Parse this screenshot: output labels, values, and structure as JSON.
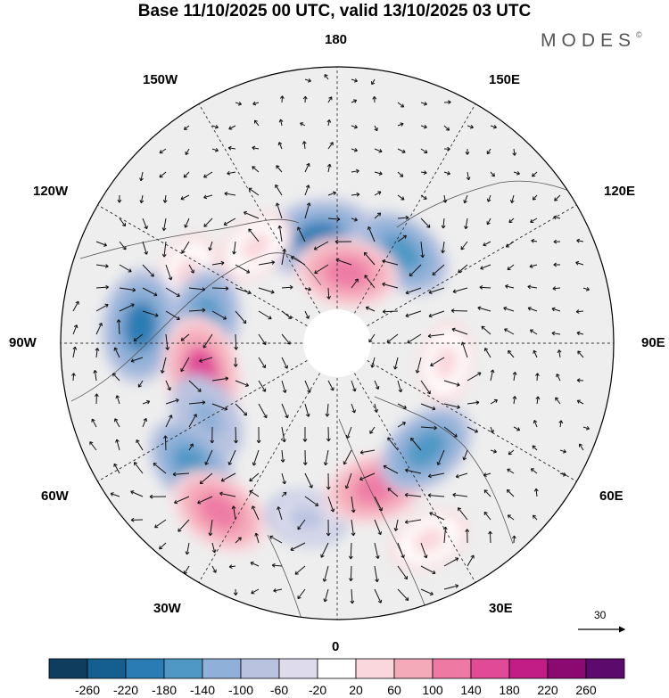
{
  "title": "Base 11/10/2025 00 UTC, valid 13/10/2025 03 UTC",
  "brand": "MODES",
  "brand_mark": "©",
  "longitudes": {
    "top": "180",
    "bottom": "0",
    "left": "90W",
    "right": "90E",
    "nw1": "150W",
    "nw2": "120W",
    "ne1": "150E",
    "ne2": "120E",
    "sw1": "60W",
    "sw2": "30W",
    "se1": "60E",
    "se2": "30E"
  },
  "vector_scale": {
    "value": "30"
  },
  "colorbar": {
    "ticks": [
      "-260",
      "-220",
      "-180",
      "-140",
      "-100",
      "-60",
      "-20",
      "20",
      "60",
      "100",
      "140",
      "180",
      "220",
      "260"
    ],
    "colors": [
      "#0f3d5e",
      "#145f8f",
      "#2a7db4",
      "#4f98c6",
      "#8fb0d8",
      "#b9c3e0",
      "#dedcec",
      "#ffffff",
      "#f9d7dc",
      "#f4aab9",
      "#ee7aa4",
      "#e04a97",
      "#c21d86",
      "#8a0a72",
      "#5c0a6b"
    ]
  },
  "anomalies": [
    {
      "lon": -170,
      "lat": 63,
      "value": -180
    },
    {
      "lon": -140,
      "lat": 58,
      "value": 60
    },
    {
      "lon": -115,
      "lat": 48,
      "value": 60
    },
    {
      "lon": -95,
      "lat": 40,
      "value": -180
    },
    {
      "lon": -100,
      "lat": 56,
      "value": -140
    },
    {
      "lon": -78,
      "lat": 55,
      "value": 180
    },
    {
      "lon": -60,
      "lat": 52,
      "value": -100
    },
    {
      "lon": -50,
      "lat": 42,
      "value": -140
    },
    {
      "lon": -35,
      "lat": 38,
      "value": 140
    },
    {
      "lon": -10,
      "lat": 45,
      "value": -60
    },
    {
      "lon": 15,
      "lat": 52,
      "value": 140
    },
    {
      "lon": 40,
      "lat": 55,
      "value": -140
    },
    {
      "lon": 80,
      "lat": 62,
      "value": 60
    },
    {
      "lon": 145,
      "lat": 62,
      "value": -140
    },
    {
      "lon": 172,
      "lat": 72,
      "value": 140
    },
    {
      "lon": 25,
      "lat": 35,
      "value": 60
    }
  ]
}
